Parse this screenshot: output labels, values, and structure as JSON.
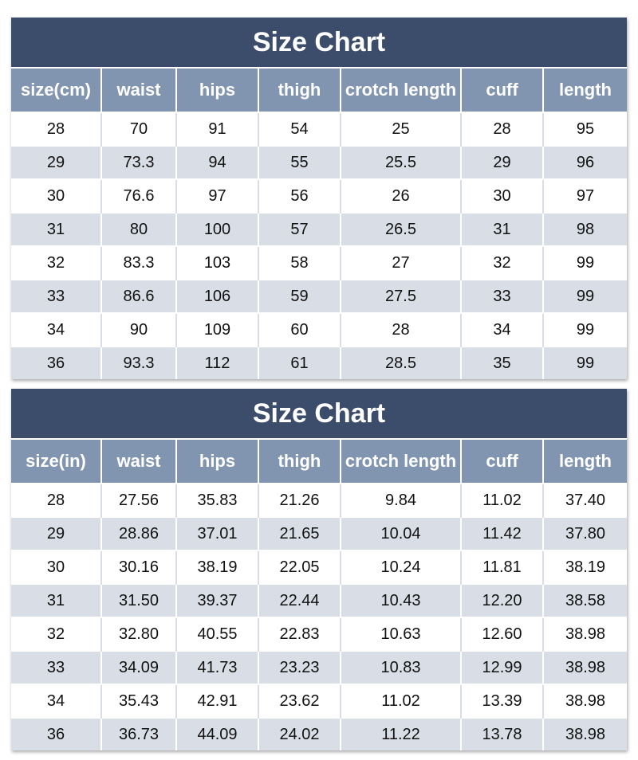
{
  "tables": [
    {
      "title": "Size Chart",
      "header": [
        "size(cm)",
        "waist",
        "hips",
        "thigh",
        "crotch length",
        "cuff",
        "length"
      ],
      "rows": [
        [
          "28",
          "70",
          "91",
          "54",
          "25",
          "28",
          "95"
        ],
        [
          "29",
          "73.3",
          "94",
          "55",
          "25.5",
          "29",
          "96"
        ],
        [
          "30",
          "76.6",
          "97",
          "56",
          "26",
          "30",
          "97"
        ],
        [
          "31",
          "80",
          "100",
          "57",
          "26.5",
          "31",
          "98"
        ],
        [
          "32",
          "83.3",
          "103",
          "58",
          "27",
          "32",
          "99"
        ],
        [
          "33",
          "86.6",
          "106",
          "59",
          "27.5",
          "33",
          "99"
        ],
        [
          "34",
          "90",
          "109",
          "60",
          "28",
          "34",
          "99"
        ],
        [
          "36",
          "93.3",
          "112",
          "61",
          "28.5",
          "35",
          "99"
        ]
      ]
    },
    {
      "title": "Size Chart",
      "header": [
        "size(in)",
        "waist",
        "hips",
        "thigh",
        "crotch length",
        "cuff",
        "length"
      ],
      "rows": [
        [
          "28",
          "27.56",
          "35.83",
          "21.26",
          "9.84",
          "11.02",
          "37.40"
        ],
        [
          "29",
          "28.86",
          "37.01",
          "21.65",
          "10.04",
          "11.42",
          "37.80"
        ],
        [
          "30",
          "30.16",
          "38.19",
          "22.05",
          "10.24",
          "11.81",
          "38.19"
        ],
        [
          "31",
          "31.50",
          "39.37",
          "22.44",
          "10.43",
          "12.20",
          "38.58"
        ],
        [
          "32",
          "32.80",
          "40.55",
          "22.83",
          "10.63",
          "12.60",
          "38.98"
        ],
        [
          "33",
          "34.09",
          "41.73",
          "23.23",
          "10.83",
          "12.99",
          "38.98"
        ],
        [
          "34",
          "35.43",
          "42.91",
          "23.62",
          "11.02",
          "13.39",
          "38.98"
        ],
        [
          "36",
          "36.73",
          "44.09",
          "24.02",
          "11.22",
          "13.78",
          "38.98"
        ]
      ]
    }
  ]
}
